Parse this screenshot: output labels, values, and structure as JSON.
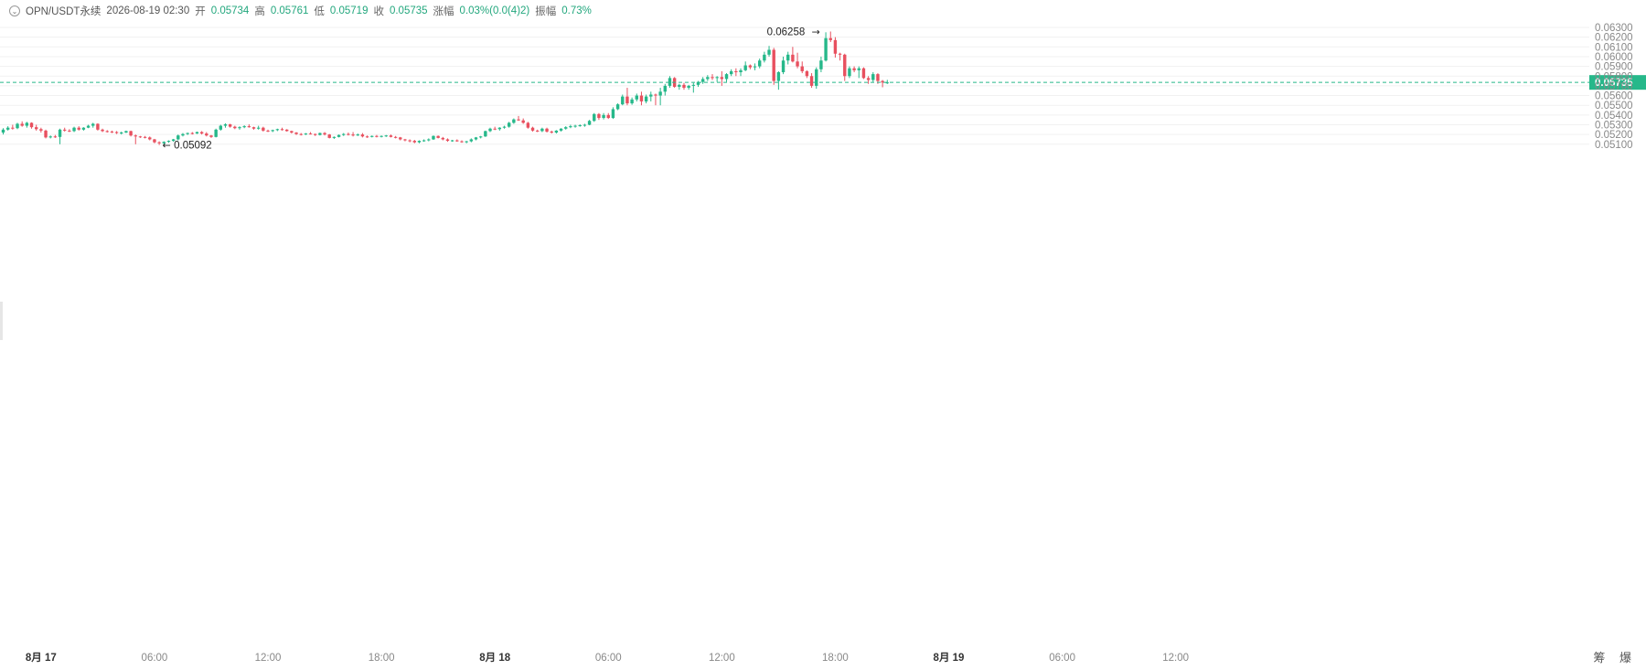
{
  "header": {
    "symbol": "OPN/USDT永续",
    "datetime": "2026-08-19 02:30",
    "open_label": "开",
    "open": "0.05734",
    "high_label": "高",
    "high": "0.05761",
    "low_label": "低",
    "low": "0.05719",
    "close_label": "收",
    "close": "0.05735",
    "change_label": "涨幅",
    "change": "0.03%(0.0(4)2)",
    "amplitude_label": "振幅",
    "amplitude": "0.73%"
  },
  "corner_tools": "筹 爆",
  "colors": {
    "up": "#26b88a",
    "down": "#e8505f",
    "last_price": "#26b88a",
    "grid": "#f1f1f1",
    "axis_text": "#888888"
  },
  "chart_data": {
    "type": "candlestick",
    "y_ticks": [
      "0.06300",
      "0.06200",
      "0.06100",
      "0.06000",
      "0.05900",
      "0.05800",
      "0.05700",
      "0.05600",
      "0.05500",
      "0.05400",
      "0.05300",
      "0.05200",
      "0.05100"
    ],
    "x_ticks": [
      {
        "label": "8月 17",
        "bold": true,
        "bar": 8
      },
      {
        "label": "06:00",
        "bold": false,
        "bar": 32
      },
      {
        "label": "12:00",
        "bold": false,
        "bar": 56
      },
      {
        "label": "18:00",
        "bold": false,
        "bar": 80
      },
      {
        "label": "8月 18",
        "bold": true,
        "bar": 104
      },
      {
        "label": "06:00",
        "bold": false,
        "bar": 128
      },
      {
        "label": "12:00",
        "bold": false,
        "bar": 152
      },
      {
        "label": "18:00",
        "bold": false,
        "bar": 176
      },
      {
        "label": "8月 19",
        "bold": true,
        "bar": 200
      },
      {
        "label": "06:00",
        "bold": false,
        "bar": 224
      },
      {
        "label": "12:00",
        "bold": false,
        "bar": 248
      }
    ],
    "last_price": "0.05735",
    "high_annotation": {
      "label": "0.06258",
      "value": 0.06258
    },
    "low_annotation": {
      "label": "0.05092",
      "value": 0.05092
    },
    "candles": [
      [
        0.0522,
        0.05265,
        0.052,
        0.0525
      ],
      [
        0.0525,
        0.05285,
        0.0524,
        0.0527
      ],
      [
        0.0527,
        0.053,
        0.0525,
        0.05265
      ],
      [
        0.05265,
        0.0532,
        0.05255,
        0.0531
      ],
      [
        0.0531,
        0.05335,
        0.0528,
        0.0529
      ],
      [
        0.0529,
        0.0533,
        0.0527,
        0.0532
      ],
      [
        0.0532,
        0.05325,
        0.0526,
        0.05275
      ],
      [
        0.05275,
        0.053,
        0.0524,
        0.05255
      ],
      [
        0.05255,
        0.0527,
        0.0522,
        0.0524
      ],
      [
        0.0524,
        0.0525,
        0.0516,
        0.0517
      ],
      [
        0.0517,
        0.0519,
        0.0516,
        0.0518
      ],
      [
        0.0518,
        0.05195,
        0.05165,
        0.05175
      ],
      [
        0.05175,
        0.0526,
        0.051,
        0.0525
      ],
      [
        0.0525,
        0.0527,
        0.0523,
        0.0524
      ],
      [
        0.0524,
        0.05255,
        0.05225,
        0.05235
      ],
      [
        0.05235,
        0.0528,
        0.05225,
        0.0527
      ],
      [
        0.0527,
        0.05285,
        0.0524,
        0.0525
      ],
      [
        0.0525,
        0.05275,
        0.0524,
        0.0527
      ],
      [
        0.0527,
        0.053,
        0.05265,
        0.0529
      ],
      [
        0.0529,
        0.0532,
        0.0527,
        0.0531
      ],
      [
        0.0531,
        0.05315,
        0.0524,
        0.0525
      ],
      [
        0.0525,
        0.0526,
        0.05225,
        0.05235
      ],
      [
        0.05235,
        0.05245,
        0.0522,
        0.0523
      ],
      [
        0.0523,
        0.0524,
        0.05215,
        0.05225
      ],
      [
        0.05225,
        0.05235,
        0.05205,
        0.05215
      ],
      [
        0.05215,
        0.0523,
        0.052,
        0.0522
      ],
      [
        0.0522,
        0.0524,
        0.05215,
        0.05235
      ],
      [
        0.05235,
        0.0524,
        0.0518,
        0.0519
      ],
      [
        0.0519,
        0.052,
        0.051,
        0.0518
      ],
      [
        0.0518,
        0.05185,
        0.05165,
        0.05175
      ],
      [
        0.05175,
        0.05185,
        0.0516,
        0.0517
      ],
      [
        0.0517,
        0.0518,
        0.0514,
        0.0515
      ],
      [
        0.0515,
        0.05155,
        0.0511,
        0.0512
      ],
      [
        0.0512,
        0.0513,
        0.05092,
        0.0511
      ],
      [
        0.0511,
        0.0513,
        0.051,
        0.05125
      ],
      [
        0.05125,
        0.0514,
        0.05115,
        0.05135
      ],
      [
        0.05135,
        0.05155,
        0.05125,
        0.0515
      ],
      [
        0.0515,
        0.052,
        0.0514,
        0.0519
      ],
      [
        0.0519,
        0.05215,
        0.0518,
        0.05205
      ],
      [
        0.05205,
        0.0522,
        0.05195,
        0.05215
      ],
      [
        0.05215,
        0.05225,
        0.052,
        0.0521
      ],
      [
        0.0521,
        0.0523,
        0.05205,
        0.05225
      ],
      [
        0.05225,
        0.05235,
        0.052,
        0.0521
      ],
      [
        0.0521,
        0.05225,
        0.0518,
        0.0519
      ],
      [
        0.0519,
        0.05195,
        0.05165,
        0.05175
      ],
      [
        0.05175,
        0.0526,
        0.0517,
        0.0525
      ],
      [
        0.0525,
        0.053,
        0.0524,
        0.0529
      ],
      [
        0.0529,
        0.05315,
        0.0527,
        0.05305
      ],
      [
        0.05305,
        0.0531,
        0.0527,
        0.0528
      ],
      [
        0.0528,
        0.0529,
        0.05255,
        0.05265
      ],
      [
        0.05265,
        0.05285,
        0.0525,
        0.05275
      ],
      [
        0.05275,
        0.05295,
        0.05265,
        0.05285
      ],
      [
        0.05285,
        0.05305,
        0.0527,
        0.05275
      ],
      [
        0.05275,
        0.0528,
        0.0525,
        0.0526
      ],
      [
        0.0526,
        0.0529,
        0.0525,
        0.0527
      ],
      [
        0.0527,
        0.0528,
        0.0523,
        0.0524
      ],
      [
        0.0524,
        0.0525,
        0.05225,
        0.05235
      ],
      [
        0.05235,
        0.0525,
        0.05225,
        0.05245
      ],
      [
        0.05245,
        0.0526,
        0.05235,
        0.05255
      ],
      [
        0.05255,
        0.0527,
        0.0524,
        0.0525
      ],
      [
        0.0525,
        0.05255,
        0.0523,
        0.05235
      ],
      [
        0.05235,
        0.0524,
        0.0521,
        0.0522
      ],
      [
        0.0522,
        0.05225,
        0.05195,
        0.05205
      ],
      [
        0.05205,
        0.05215,
        0.0519,
        0.052
      ],
      [
        0.052,
        0.05215,
        0.05195,
        0.0521
      ],
      [
        0.0521,
        0.05225,
        0.052,
        0.05205
      ],
      [
        0.05205,
        0.0521,
        0.05185,
        0.05195
      ],
      [
        0.05195,
        0.0522,
        0.0519,
        0.05215
      ],
      [
        0.05215,
        0.05225,
        0.0519,
        0.052
      ],
      [
        0.052,
        0.05205,
        0.0516,
        0.05165
      ],
      [
        0.05165,
        0.0518,
        0.05155,
        0.05175
      ],
      [
        0.05175,
        0.052,
        0.0517,
        0.05195
      ],
      [
        0.05195,
        0.05215,
        0.05185,
        0.05205
      ],
      [
        0.05205,
        0.0522,
        0.0519,
        0.052
      ],
      [
        0.052,
        0.05225,
        0.0518,
        0.0519
      ],
      [
        0.0519,
        0.0521,
        0.05185,
        0.052
      ],
      [
        0.052,
        0.05215,
        0.0517,
        0.0518
      ],
      [
        0.0518,
        0.0519,
        0.05165,
        0.05175
      ],
      [
        0.05175,
        0.0519,
        0.0517,
        0.05185
      ],
      [
        0.05185,
        0.05195,
        0.0517,
        0.0518
      ],
      [
        0.0518,
        0.0519,
        0.0517,
        0.05185
      ],
      [
        0.05185,
        0.05195,
        0.05175,
        0.0519
      ],
      [
        0.0519,
        0.052,
        0.0517,
        0.05175
      ],
      [
        0.05175,
        0.05185,
        0.0516,
        0.0517
      ],
      [
        0.0517,
        0.05175,
        0.0514,
        0.0515
      ],
      [
        0.0515,
        0.05155,
        0.0513,
        0.0514
      ],
      [
        0.0514,
        0.0515,
        0.0512,
        0.05135
      ],
      [
        0.05135,
        0.05145,
        0.0511,
        0.0512
      ],
      [
        0.0512,
        0.0514,
        0.0511,
        0.05135
      ],
      [
        0.05135,
        0.0515,
        0.05125,
        0.0514
      ],
      [
        0.0514,
        0.0516,
        0.0513,
        0.0515
      ],
      [
        0.0515,
        0.0519,
        0.05145,
        0.05185
      ],
      [
        0.05185,
        0.0519,
        0.0516,
        0.05165
      ],
      [
        0.05165,
        0.05175,
        0.0514,
        0.0515
      ],
      [
        0.0515,
        0.0516,
        0.05125,
        0.05135
      ],
      [
        0.05135,
        0.05145,
        0.05125,
        0.0514
      ],
      [
        0.0514,
        0.0515,
        0.05125,
        0.0513
      ],
      [
        0.0513,
        0.0514,
        0.05115,
        0.05125
      ],
      [
        0.05125,
        0.05135,
        0.0511,
        0.0513
      ],
      [
        0.0513,
        0.0516,
        0.0512,
        0.0515
      ],
      [
        0.0515,
        0.05175,
        0.0514,
        0.0517
      ],
      [
        0.0517,
        0.05185,
        0.0516,
        0.0518
      ],
      [
        0.0518,
        0.0524,
        0.05175,
        0.05235
      ],
      [
        0.05235,
        0.0527,
        0.05225,
        0.0526
      ],
      [
        0.0526,
        0.0528,
        0.05245,
        0.05255
      ],
      [
        0.05255,
        0.05275,
        0.0524,
        0.0527
      ],
      [
        0.0527,
        0.0529,
        0.0526,
        0.0528
      ],
      [
        0.0528,
        0.0533,
        0.0527,
        0.0532
      ],
      [
        0.0532,
        0.05365,
        0.0531,
        0.05355
      ],
      [
        0.05355,
        0.0539,
        0.0534,
        0.05345
      ],
      [
        0.05345,
        0.05365,
        0.0531,
        0.0532
      ],
      [
        0.0532,
        0.0533,
        0.0526,
        0.0527
      ],
      [
        0.0527,
        0.0528,
        0.0523,
        0.0524
      ],
      [
        0.0524,
        0.0525,
        0.05225,
        0.05235
      ],
      [
        0.05235,
        0.0527,
        0.05225,
        0.0526
      ],
      [
        0.0526,
        0.0527,
        0.0522,
        0.0523
      ],
      [
        0.0523,
        0.0524,
        0.0521,
        0.0522
      ],
      [
        0.0522,
        0.05245,
        0.0521,
        0.0524
      ],
      [
        0.0524,
        0.05265,
        0.0523,
        0.0526
      ],
      [
        0.0526,
        0.05285,
        0.0525,
        0.05275
      ],
      [
        0.05275,
        0.053,
        0.05265,
        0.05285
      ],
      [
        0.05285,
        0.053,
        0.0527,
        0.0529
      ],
      [
        0.0529,
        0.05305,
        0.0528,
        0.05295
      ],
      [
        0.05295,
        0.0531,
        0.0528,
        0.053
      ],
      [
        0.053,
        0.0535,
        0.05295,
        0.0534
      ],
      [
        0.0534,
        0.0542,
        0.0533,
        0.0541
      ],
      [
        0.0541,
        0.0542,
        0.0535,
        0.0537
      ],
      [
        0.0537,
        0.0542,
        0.05355,
        0.054
      ],
      [
        0.054,
        0.0542,
        0.0536,
        0.0537
      ],
      [
        0.0537,
        0.0548,
        0.0536,
        0.0546
      ],
      [
        0.0546,
        0.0552,
        0.0545,
        0.0551
      ],
      [
        0.0551,
        0.0561,
        0.055,
        0.0559
      ],
      [
        0.0559,
        0.0568,
        0.055,
        0.0552
      ],
      [
        0.0552,
        0.0558,
        0.05505,
        0.0556
      ],
      [
        0.0556,
        0.0562,
        0.0554,
        0.056
      ],
      [
        0.056,
        0.0564,
        0.055,
        0.0554
      ],
      [
        0.0554,
        0.0561,
        0.0552,
        0.0559
      ],
      [
        0.0559,
        0.0564,
        0.0554,
        0.0561
      ],
      [
        0.0561,
        0.0562,
        0.055,
        0.056
      ],
      [
        0.056,
        0.0568,
        0.055,
        0.0564
      ],
      [
        0.0564,
        0.0572,
        0.056,
        0.057
      ],
      [
        0.057,
        0.058,
        0.0568,
        0.0578
      ],
      [
        0.0578,
        0.0579,
        0.0568,
        0.0569
      ],
      [
        0.0569,
        0.0572,
        0.0566,
        0.0571
      ],
      [
        0.0571,
        0.0573,
        0.0566,
        0.0568
      ],
      [
        0.0568,
        0.0571,
        0.0566,
        0.057
      ],
      [
        0.057,
        0.0573,
        0.0563,
        0.0571
      ],
      [
        0.0571,
        0.0575,
        0.0569,
        0.0574
      ],
      [
        0.0574,
        0.0579,
        0.0572,
        0.0577
      ],
      [
        0.0577,
        0.0581,
        0.0575,
        0.0579
      ],
      [
        0.0579,
        0.0582,
        0.0576,
        0.0578
      ],
      [
        0.0578,
        0.058,
        0.0574,
        0.0579
      ],
      [
        0.0579,
        0.0585,
        0.057,
        0.0577
      ],
      [
        0.0577,
        0.0583,
        0.0574,
        0.0582
      ],
      [
        0.0582,
        0.0587,
        0.058,
        0.0585
      ],
      [
        0.0585,
        0.0588,
        0.058,
        0.0584
      ],
      [
        0.0584,
        0.0588,
        0.058,
        0.0586
      ],
      [
        0.0586,
        0.0595,
        0.0585,
        0.0591
      ],
      [
        0.0591,
        0.0592,
        0.0587,
        0.0589
      ],
      [
        0.0589,
        0.0593,
        0.0586,
        0.059
      ],
      [
        0.059,
        0.0598,
        0.0588,
        0.0596
      ],
      [
        0.0596,
        0.0605,
        0.0594,
        0.0602
      ],
      [
        0.0602,
        0.0611,
        0.06,
        0.0607
      ],
      [
        0.0607,
        0.0609,
        0.0571,
        0.0575
      ],
      [
        0.0575,
        0.0585,
        0.0566,
        0.0584
      ],
      [
        0.0584,
        0.06,
        0.0582,
        0.0596
      ],
      [
        0.0596,
        0.0605,
        0.0592,
        0.0602
      ],
      [
        0.0602,
        0.061,
        0.0594,
        0.0595
      ],
      [
        0.0595,
        0.0604,
        0.0588,
        0.059
      ],
      [
        0.059,
        0.0595,
        0.0583,
        0.0585
      ],
      [
        0.0585,
        0.0586,
        0.0578,
        0.058
      ],
      [
        0.058,
        0.0583,
        0.0568,
        0.057
      ],
      [
        0.057,
        0.0589,
        0.0567,
        0.0587
      ],
      [
        0.0587,
        0.06,
        0.0584,
        0.0596
      ],
      [
        0.0596,
        0.0625,
        0.0595,
        0.0619
      ],
      [
        0.0619,
        0.06258,
        0.0615,
        0.0617
      ],
      [
        0.0617,
        0.062,
        0.0599,
        0.0603
      ],
      [
        0.0603,
        0.0604,
        0.0596,
        0.0602
      ],
      [
        0.0602,
        0.0603,
        0.0575,
        0.058
      ],
      [
        0.058,
        0.059,
        0.0578,
        0.0588
      ],
      [
        0.0588,
        0.059,
        0.0584,
        0.0586
      ],
      [
        0.0586,
        0.059,
        0.0578,
        0.0588
      ],
      [
        0.0588,
        0.0589,
        0.0577,
        0.0578
      ],
      [
        0.0578,
        0.058,
        0.0572,
        0.0576
      ],
      [
        0.0576,
        0.0584,
        0.0574,
        0.0582
      ],
      [
        0.0582,
        0.0583,
        0.0572,
        0.0575
      ],
      [
        0.0575,
        0.0576,
        0.05685,
        0.05734
      ],
      [
        0.05734,
        0.05761,
        0.05719,
        0.05735
      ]
    ]
  }
}
